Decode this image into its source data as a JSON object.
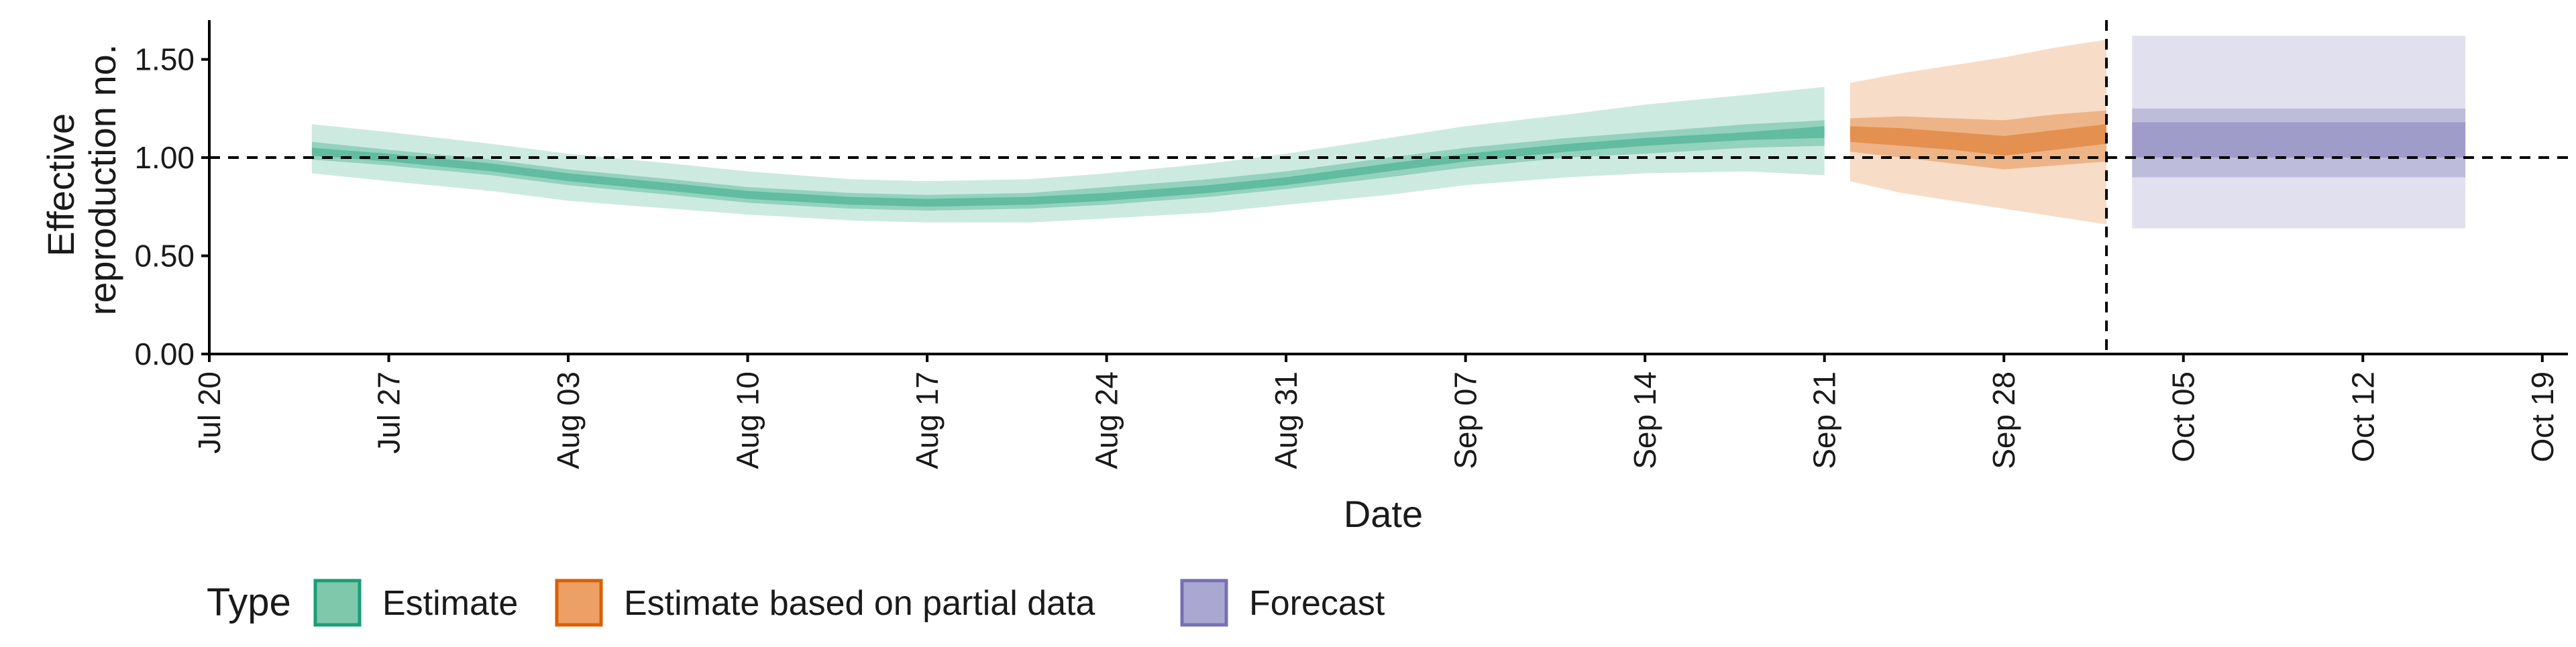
{
  "chart_data": {
    "type": "area",
    "title": "",
    "xlabel": "Date",
    "ylabel_lines": [
      "Effective",
      "reproduction no."
    ],
    "xlim": [
      "2020-07-20",
      "2020-10-20"
    ],
    "ylim": [
      0,
      1.7
    ],
    "x_ticks": [
      "2020-07-20",
      "2020-07-27",
      "2020-08-03",
      "2020-08-10",
      "2020-08-17",
      "2020-08-24",
      "2020-08-31",
      "2020-09-07",
      "2020-09-14",
      "2020-09-21",
      "2020-09-28",
      "2020-10-05",
      "2020-10-12",
      "2020-10-19"
    ],
    "x_tick_labels": [
      "Jul 20",
      "Jul 27",
      "Aug 03",
      "Aug 10",
      "Aug 17",
      "Aug 24",
      "Aug 31",
      "Sep 07",
      "Sep 14",
      "Sep 21",
      "Sep 28",
      "Oct 05",
      "Oct 12",
      "Oct 19"
    ],
    "y_ticks": [
      0,
      0.5,
      1.0,
      1.5
    ],
    "y_tick_labels": [
      "0.00",
      "0.50",
      "1.00",
      "1.50"
    ],
    "reference_hline": 1.0,
    "reference_vline": "2020-10-02",
    "grid": false,
    "legend": {
      "title": "Type",
      "position": "bottom",
      "entries": [
        {
          "label": "Estimate",
          "fill": "#7fc8ab",
          "stroke": "#1b9e77"
        },
        {
          "label": "Estimate based on partial data",
          "fill": "#eda065",
          "stroke": "#d95f02"
        },
        {
          "label": "Forecast",
          "fill": "#aaa8d2",
          "stroke": "#7570b3"
        }
      ]
    },
    "series": [
      {
        "name": "Estimate",
        "color": "#1b9e77",
        "x": [
          "2020-07-24",
          "2020-07-27",
          "2020-07-31",
          "2020-08-03",
          "2020-08-07",
          "2020-08-10",
          "2020-08-14",
          "2020-08-17",
          "2020-08-21",
          "2020-08-24",
          "2020-08-28",
          "2020-08-31",
          "2020-09-04",
          "2020-09-07",
          "2020-09-11",
          "2020-09-14",
          "2020-09-18",
          "2020-09-21"
        ],
        "median": [
          1.03,
          1.0,
          0.95,
          0.9,
          0.85,
          0.81,
          0.78,
          0.77,
          0.78,
          0.8,
          0.84,
          0.88,
          0.95,
          1.0,
          1.05,
          1.08,
          1.11,
          1.13
        ],
        "lower_90": [
          0.92,
          0.88,
          0.83,
          0.78,
          0.74,
          0.71,
          0.68,
          0.67,
          0.67,
          0.69,
          0.72,
          0.76,
          0.81,
          0.86,
          0.9,
          0.92,
          0.93,
          0.91
        ],
        "upper_90": [
          1.17,
          1.13,
          1.07,
          1.02,
          0.97,
          0.93,
          0.89,
          0.88,
          0.89,
          0.92,
          0.97,
          1.02,
          1.1,
          1.16,
          1.22,
          1.27,
          1.32,
          1.36
        ],
        "lower_50": [
          0.99,
          0.96,
          0.91,
          0.86,
          0.81,
          0.77,
          0.74,
          0.73,
          0.74,
          0.76,
          0.8,
          0.84,
          0.9,
          0.95,
          1.0,
          1.02,
          1.05,
          1.06
        ],
        "upper_50": [
          1.08,
          1.04,
          0.99,
          0.94,
          0.89,
          0.85,
          0.82,
          0.81,
          0.82,
          0.85,
          0.89,
          0.93,
          1.0,
          1.05,
          1.1,
          1.13,
          1.17,
          1.19
        ],
        "lower_20": [
          1.01,
          0.98,
          0.93,
          0.88,
          0.83,
          0.79,
          0.76,
          0.75,
          0.76,
          0.78,
          0.82,
          0.86,
          0.93,
          0.98,
          1.03,
          1.06,
          1.09,
          1.1
        ],
        "upper_20": [
          1.05,
          1.02,
          0.97,
          0.92,
          0.87,
          0.83,
          0.8,
          0.79,
          0.8,
          0.82,
          0.86,
          0.9,
          0.97,
          1.02,
          1.07,
          1.1,
          1.13,
          1.16
        ]
      },
      {
        "name": "Estimate based on partial data",
        "color": "#d95f02",
        "x": [
          "2020-09-22",
          "2020-09-24",
          "2020-09-26",
          "2020-09-28",
          "2020-09-30",
          "2020-10-02"
        ],
        "median": [
          1.12,
          1.1,
          1.08,
          1.06,
          1.09,
          1.12
        ],
        "lower_90": [
          0.88,
          0.82,
          0.78,
          0.74,
          0.7,
          0.66
        ],
        "upper_90": [
          1.38,
          1.43,
          1.47,
          1.51,
          1.56,
          1.6
        ],
        "lower_50": [
          1.03,
          1.0,
          0.97,
          0.94,
          0.96,
          0.98
        ],
        "upper_50": [
          1.2,
          1.21,
          1.2,
          1.19,
          1.22,
          1.24
        ],
        "lower_20": [
          1.08,
          1.06,
          1.04,
          1.01,
          1.04,
          1.07
        ],
        "upper_20": [
          1.16,
          1.15,
          1.13,
          1.11,
          1.14,
          1.17
        ]
      },
      {
        "name": "Forecast",
        "color": "#7570b3",
        "x": [
          "2020-10-03",
          "2020-10-16"
        ],
        "median": [
          1.07,
          1.07
        ],
        "lower_90": [
          0.64,
          0.64
        ],
        "upper_90": [
          1.62,
          1.62
        ],
        "lower_50": [
          0.9,
          0.9
        ],
        "upper_50": [
          1.25,
          1.25
        ],
        "lower_20": [
          1.0,
          1.0
        ],
        "upper_20": [
          1.18,
          1.18
        ]
      }
    ]
  }
}
